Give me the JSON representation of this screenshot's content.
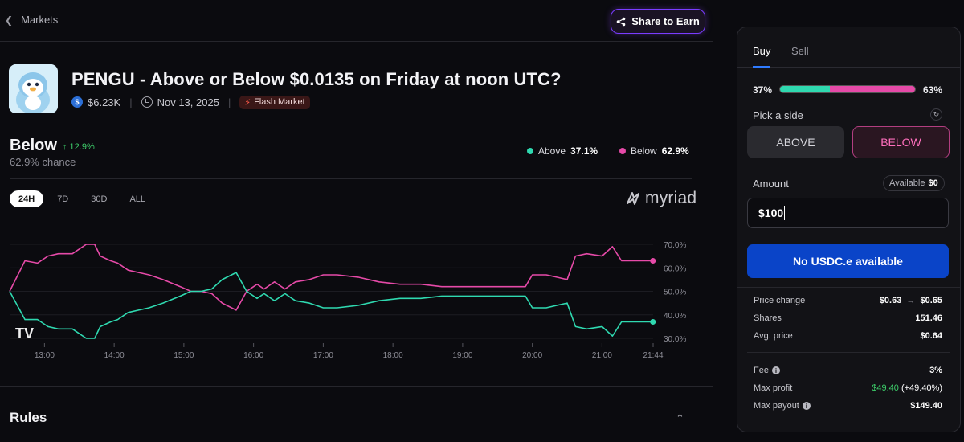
{
  "nav": {
    "back_label": "Markets",
    "share_label": "Share to Earn"
  },
  "market": {
    "title": "PENGU - Above or Below $0.0135 on Friday at noon UTC?",
    "volume": "$6.23K",
    "date": "Nov 13, 2025",
    "badge": "Flash Market"
  },
  "outcome": {
    "name": "Below",
    "change": "↑ 12.9%",
    "chance": "62.9% chance"
  },
  "legend": {
    "above_label": "Above",
    "above_value": "37.1%",
    "below_label": "Below",
    "below_value": "62.9%"
  },
  "ranges": [
    "24H",
    "7D",
    "30D",
    "ALL"
  ],
  "brand": "myriad",
  "chart_data": {
    "type": "line",
    "x_tick_labels": [
      "13:00",
      "14:00",
      "15:00",
      "16:00",
      "17:00",
      "18:00",
      "19:00",
      "20:00",
      "21:00",
      "21:44"
    ],
    "y_tick_labels": [
      "70.0%",
      "60.0%",
      "50.0%",
      "40.0%",
      "30.0%"
    ],
    "ylim": [
      30,
      70
    ],
    "x_hours_start": 12.5,
    "x_hours_end": 21.733,
    "series": [
      {
        "name": "Below",
        "color": "#e64aa8",
        "x": [
          12.5,
          12.72,
          12.9,
          13.05,
          13.2,
          13.4,
          13.6,
          13.72,
          13.8,
          13.95,
          14.05,
          14.2,
          14.35,
          14.5,
          14.7,
          14.95,
          15.1,
          15.25,
          15.4,
          15.55,
          15.75,
          15.9,
          16.05,
          16.15,
          16.3,
          16.45,
          16.6,
          16.8,
          17.0,
          17.2,
          17.5,
          17.8,
          18.1,
          18.4,
          18.7,
          19.0,
          19.3,
          19.6,
          19.9,
          20.0,
          20.2,
          20.35,
          20.5,
          20.62,
          20.78,
          21.0,
          21.15,
          21.28,
          21.4,
          21.55,
          21.73
        ],
        "values": [
          50,
          63,
          62,
          65,
          66,
          66,
          70,
          70,
          65,
          63,
          62,
          59,
          58,
          57,
          55,
          52,
          50,
          50,
          49,
          45,
          42,
          50,
          53,
          51,
          54,
          51,
          54,
          55,
          57,
          57,
          56,
          54,
          53,
          53,
          52,
          52,
          52,
          52,
          52,
          57,
          57,
          56,
          55,
          65,
          66,
          65,
          69,
          63,
          63,
          63,
          63
        ]
      },
      {
        "name": "Above",
        "color": "#2fd9b0",
        "x": [
          12.5,
          12.72,
          12.9,
          13.05,
          13.2,
          13.4,
          13.6,
          13.72,
          13.8,
          13.95,
          14.05,
          14.2,
          14.35,
          14.5,
          14.7,
          14.95,
          15.1,
          15.25,
          15.4,
          15.55,
          15.75,
          15.9,
          16.05,
          16.15,
          16.3,
          16.45,
          16.6,
          16.8,
          17.0,
          17.2,
          17.5,
          17.8,
          18.1,
          18.4,
          18.7,
          19.0,
          19.3,
          19.6,
          19.9,
          20.0,
          20.2,
          20.35,
          20.5,
          20.62,
          20.78,
          21.0,
          21.15,
          21.28,
          21.4,
          21.55,
          21.73
        ],
        "values": [
          50,
          38,
          38,
          35,
          34,
          34,
          30,
          30,
          35,
          37,
          38,
          41,
          42,
          43,
          45,
          48,
          50,
          50,
          51,
          55,
          58,
          50,
          47,
          49,
          46,
          49,
          46,
          45,
          43,
          43,
          44,
          46,
          47,
          47,
          48,
          48,
          48,
          48,
          48,
          43,
          43,
          44,
          45,
          35,
          34,
          35,
          31,
          37,
          37,
          37,
          37
        ]
      }
    ]
  },
  "rules": {
    "title": "Rules"
  },
  "trade": {
    "tabs": [
      "Buy",
      "Sell"
    ],
    "above_pct": "37%",
    "below_pct": "63%",
    "above_fraction": 0.37,
    "pick_label": "Pick a side",
    "above_btn": "ABOVE",
    "below_btn": "BELOW",
    "amount_label": "Amount",
    "available_label": "Available",
    "available_value": "$0",
    "amount_value": "$100",
    "cta": "No USDC.e available",
    "price_change_label": "Price change",
    "price_from": "$0.63",
    "price_to": "$0.65",
    "shares_label": "Shares",
    "shares_value": "151.46",
    "avg_label": "Avg. price",
    "avg_value": "$0.64",
    "fee_label": "Fee",
    "fee_value": "3%",
    "max_profit_label": "Max profit",
    "max_profit_value": "$49.40",
    "max_profit_pct": "(+49.40%)",
    "max_payout_label": "Max payout",
    "max_payout_value": "$149.40"
  },
  "colors": {
    "accent": "#0a44c8",
    "above": "#2fd9b0",
    "below": "#e64aa8",
    "positive": "#3ecf6b"
  }
}
